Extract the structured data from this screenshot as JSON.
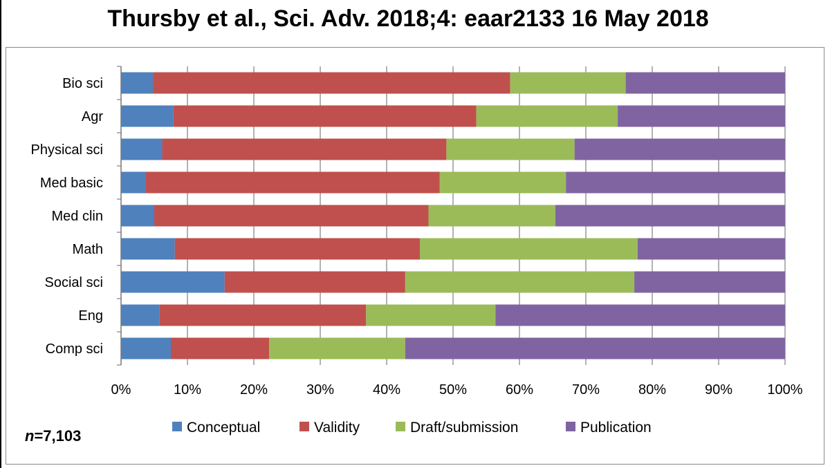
{
  "header": {
    "title": "Thursby et al., Sci. Adv. 2018;4: eaar2133 16 May 2018"
  },
  "footnote": {
    "n_symbol": "n",
    "n_value": "=7,103"
  },
  "colors": {
    "Conceptual": "#4f81bd",
    "Validity": "#c0504d",
    "Draft/submission": "#9bbb59",
    "Publication": "#8064a2",
    "grid": "#7f7f7f",
    "axis": "#7f7f7f"
  },
  "chart_data": {
    "type": "bar",
    "orientation": "horizontal",
    "stacked": true,
    "percent": true,
    "title": "",
    "xlabel": "",
    "ylabel": "",
    "xlim": [
      0,
      100
    ],
    "grid": true,
    "legend_position": "bottom",
    "x_ticks": [
      "0%",
      "10%",
      "20%",
      "30%",
      "40%",
      "50%",
      "60%",
      "70%",
      "80%",
      "90%",
      "100%"
    ],
    "categories": [
      "Bio sci",
      "Agr",
      "Physical sci",
      "Med basic",
      "Med clin",
      "Math",
      "Social sci",
      "Eng",
      "Comp sci"
    ],
    "series": [
      {
        "name": "Conceptual",
        "values": [
          4.8,
          7.9,
          6.2,
          3.7,
          5.0,
          8.1,
          15.6,
          5.8,
          7.5
        ]
      },
      {
        "name": "Validity",
        "values": [
          53.8,
          45.6,
          42.8,
          44.3,
          41.3,
          36.9,
          27.2,
          31.1,
          14.8
        ]
      },
      {
        "name": "Draft/submission",
        "values": [
          17.4,
          21.3,
          19.3,
          19.0,
          19.1,
          32.8,
          34.5,
          19.5,
          20.5
        ]
      },
      {
        "name": "Publication",
        "values": [
          24.0,
          25.2,
          31.7,
          33.0,
          34.6,
          22.2,
          22.7,
          43.6,
          57.2
        ]
      }
    ]
  }
}
